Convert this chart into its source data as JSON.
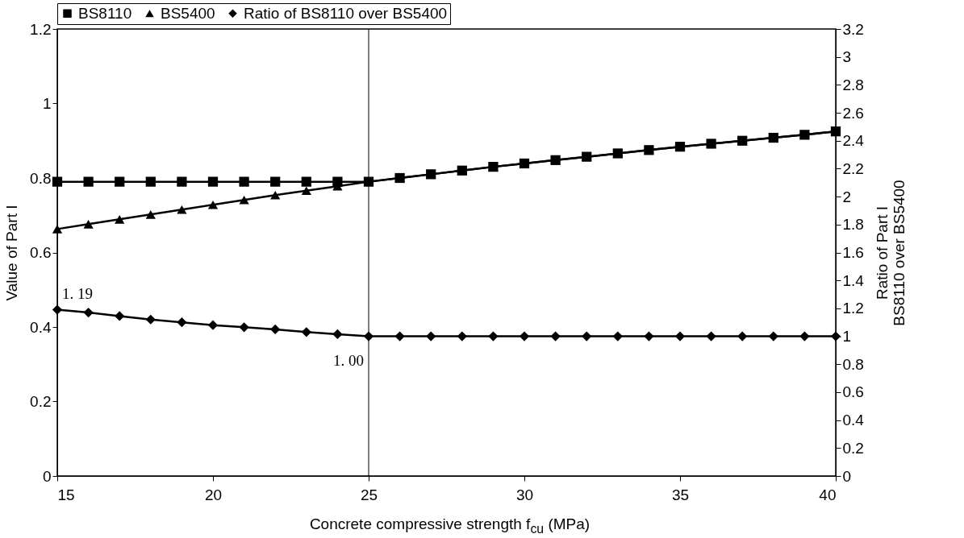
{
  "chart_data": {
    "type": "line",
    "xlabel": "Concrete compressive strength f$_{cu}$ (MPa)",
    "ylabel": "Value of Part I",
    "y2label": "Ratio of Part I\nBS8110 over BS5400",
    "x": [
      15,
      16,
      17,
      18,
      19,
      20,
      21,
      22,
      23,
      24,
      25,
      26,
      27,
      28,
      29,
      30,
      31,
      32,
      33,
      34,
      35,
      36,
      37,
      38,
      39,
      40
    ],
    "series": [
      {
        "name": "BS8110",
        "color": "#000000",
        "marker": "square",
        "line_style": "solid",
        "values": [
          0.79,
          0.79,
          0.79,
          0.79,
          0.79,
          0.79,
          0.79,
          0.79,
          0.79,
          0.79,
          0.79,
          0.8,
          0.81,
          0.82,
          0.83,
          0.839,
          0.848,
          0.857,
          0.866,
          0.875,
          0.884,
          0.892,
          0.9,
          0.908,
          0.916,
          0.925
        ]
      },
      {
        "name": "BS5400",
        "color": "#000000",
        "marker": "triangle",
        "line_style": "solid",
        "values": [
          0.663,
          0.676,
          0.689,
          0.702,
          0.715,
          0.728,
          0.741,
          0.754,
          0.766,
          0.778,
          0.79,
          0.8,
          0.81,
          0.82,
          0.83,
          0.839,
          0.848,
          0.857,
          0.866,
          0.875,
          0.884,
          0.892,
          0.9,
          0.908,
          0.916,
          0.925
        ]
      },
      {
        "name": "Ratio of BS8110 over BS5400",
        "color": "#000000",
        "marker": "diamond",
        "line_style": "solid",
        "axis": "y2",
        "values": [
          1.19,
          1.17,
          1.145,
          1.12,
          1.1,
          1.08,
          1.065,
          1.05,
          1.03,
          1.015,
          1.0,
          1.0,
          1.0,
          1.0,
          1.0,
          1.0,
          1.0,
          1.0,
          1.0,
          1.0,
          1.0,
          1.0,
          1.0,
          1.0,
          1.0,
          1.0
        ]
      }
    ],
    "xlim": [
      15,
      40
    ],
    "xticks": [
      15,
      20,
      25,
      30,
      35,
      40
    ],
    "ylim": [
      0,
      1.2
    ],
    "yticks": [
      0,
      0.2,
      0.4,
      0.6,
      0.8,
      1,
      1.2
    ],
    "y2lim": [
      0,
      3.2
    ],
    "y2ticks": [
      0,
      0.2,
      0.4,
      0.6,
      0.8,
      1,
      1.2,
      1.4,
      1.6,
      1.8,
      2,
      2.2,
      2.4,
      2.6,
      2.8,
      3,
      3.2
    ],
    "ref_lines": [
      {
        "axis": "x",
        "value": 25,
        "color": "#000000"
      }
    ],
    "annotations": [
      "1. 19",
      "1. 00"
    ],
    "legend": "top",
    "grid": false
  }
}
